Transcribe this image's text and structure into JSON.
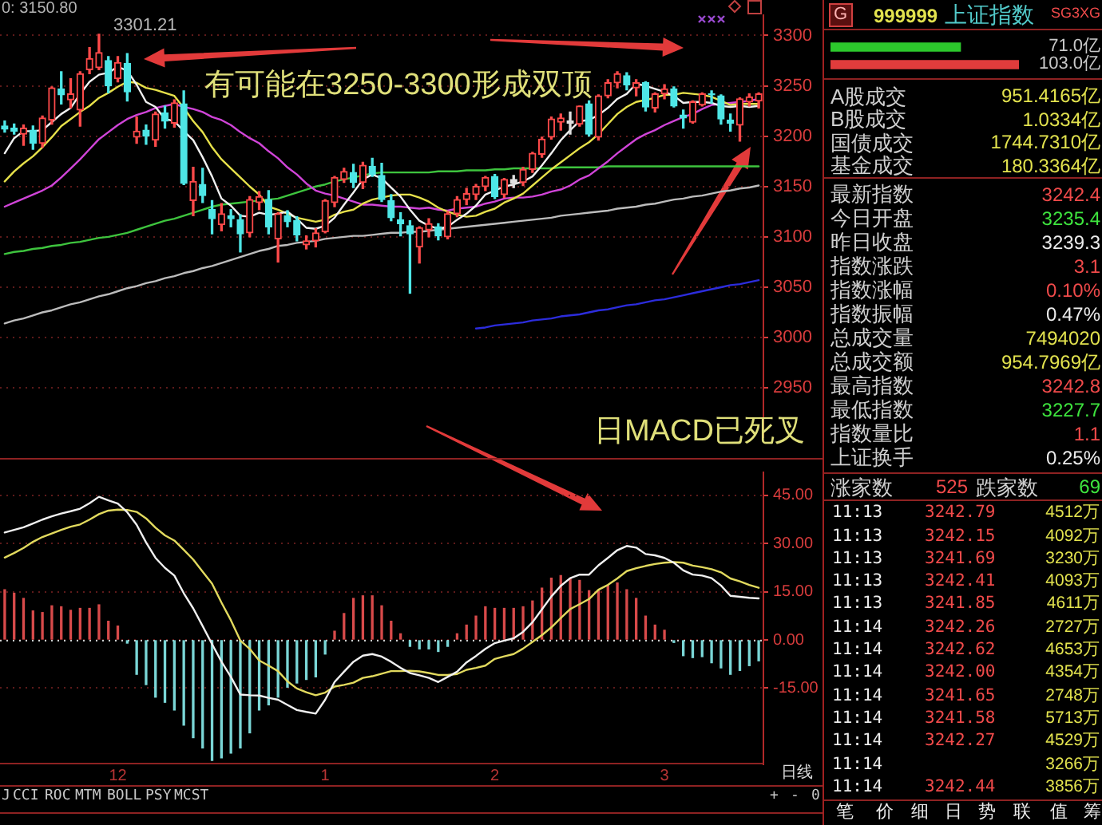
{
  "chart_data": [
    {
      "type": "candlestick",
      "categories": [
        null,
        null,
        null,
        null,
        null,
        null,
        null,
        null,
        null,
        null,
        null,
        null,
        "12",
        null,
        null,
        null,
        null,
        null,
        null,
        null,
        null,
        null,
        null,
        null,
        null,
        null,
        null,
        null,
        null,
        null,
        null,
        null,
        null,
        null,
        "1",
        null,
        null,
        null,
        null,
        null,
        null,
        null,
        null,
        null,
        null,
        null,
        null,
        null,
        null,
        null,
        null,
        null,
        "2",
        null,
        null,
        null,
        null,
        null,
        null,
        null,
        null,
        null,
        null,
        null,
        null,
        null,
        null,
        null,
        null,
        null,
        "3",
        null,
        null,
        null,
        null,
        null,
        null,
        null,
        null,
        null,
        null
      ],
      "ohlc": [
        [
          3210,
          3215,
          3204,
          3207
        ],
        [
          3208,
          3212,
          3202,
          3205
        ],
        [
          3202,
          3211,
          3191,
          3208
        ],
        [
          3206,
          3210,
          3187,
          3193
        ],
        [
          3193,
          3220,
          3189,
          3218
        ],
        [
          3216,
          3249,
          3212,
          3248
        ],
        [
          3247,
          3264,
          3232,
          3241
        ],
        [
          3236,
          3257,
          3228,
          3242
        ],
        [
          3226,
          3264,
          3210,
          3262
        ],
        [
          3266,
          3288,
          3262,
          3277
        ],
        [
          3268,
          3301.21,
          3266,
          3283
        ],
        [
          3275,
          3279,
          3243,
          3250
        ],
        [
          3257,
          3279,
          3254,
          3273
        ],
        [
          3272,
          3282,
          3235,
          3244
        ],
        [
          3199,
          3219,
          3193,
          3205
        ],
        [
          3206,
          3211,
          3192,
          3200
        ],
        [
          3196,
          3224,
          3190,
          3222
        ],
        [
          3223,
          3230,
          3208,
          3215
        ],
        [
          3213,
          3236,
          3209,
          3233
        ],
        [
          3232,
          3245,
          3152,
          3153
        ],
        [
          3136,
          3169,
          3121,
          3155
        ],
        [
          3152,
          3168,
          3134,
          3141
        ],
        [
          3127,
          3136,
          3103,
          3118
        ],
        [
          3112,
          3133,
          3106,
          3123
        ],
        [
          3121,
          3127,
          3110,
          3118
        ],
        [
          3117,
          3122,
          3085,
          3103
        ],
        [
          3104,
          3140,
          3100,
          3137
        ],
        [
          3134,
          3145,
          3127,
          3140
        ],
        [
          3137,
          3146,
          3103,
          3110
        ],
        [
          3098,
          3124,
          3075,
          3123
        ],
        [
          3121,
          3126,
          3110,
          3115
        ],
        [
          3116,
          3120,
          3096,
          3102
        ],
        [
          3092,
          3101,
          3088,
          3096
        ],
        [
          3096,
          3108,
          3090,
          3104
        ],
        [
          3105,
          3137,
          3104,
          3136
        ],
        [
          3134,
          3160,
          3130,
          3159
        ],
        [
          3157,
          3168,
          3154,
          3165
        ],
        [
          3164,
          3172,
          3149,
          3154
        ],
        [
          3154,
          3174,
          3148,
          3171
        ],
        [
          3170,
          3178,
          3160,
          3162
        ],
        [
          3161,
          3173,
          3135,
          3137
        ],
        [
          3136,
          3142,
          3116,
          3119
        ],
        [
          3117,
          3124,
          3101,
          3113
        ],
        [
          3111,
          3116,
          3044,
          3103
        ],
        [
          3090,
          3110,
          3074,
          3109
        ],
        [
          3107,
          3118,
          3100,
          3113
        ],
        [
          3110,
          3113,
          3097,
          3101
        ],
        [
          3100,
          3125,
          3098,
          3123
        ],
        [
          3123,
          3140,
          3120,
          3137
        ],
        [
          3137,
          3148,
          3132,
          3143
        ],
        [
          3142,
          3152,
          3137,
          3150
        ],
        [
          3150,
          3160,
          3146,
          3159
        ],
        [
          3160,
          3162,
          3138,
          3140
        ],
        [
          3142,
          3158,
          3139,
          3157
        ],
        [
          3157,
          3161,
          3149,
          3153
        ],
        [
          3154,
          3169,
          3151,
          3167
        ],
        [
          3167,
          3184,
          3164,
          3183
        ],
        [
          3182,
          3199,
          3179,
          3197
        ],
        [
          3199,
          3219,
          3197,
          3217
        ],
        [
          3214,
          3222,
          3206,
          3218
        ],
        [
          3215,
          3224,
          3202,
          3213
        ],
        [
          3212,
          3230,
          3210,
          3230
        ],
        [
          3232,
          3235,
          3200,
          3202
        ],
        [
          3199,
          3241,
          3196,
          3240
        ],
        [
          3240,
          3256,
          3238,
          3253
        ],
        [
          3253,
          3264,
          3248,
          3262
        ],
        [
          3260,
          3263,
          3246,
          3251
        ],
        [
          3248,
          3256,
          3240,
          3253
        ],
        [
          3253,
          3254,
          3225,
          3229
        ],
        [
          3228,
          3243,
          3224,
          3242
        ],
        [
          3242,
          3251,
          3237,
          3247
        ],
        [
          3247,
          3249,
          3229,
          3230
        ],
        [
          3221,
          3226,
          3208,
          3218
        ],
        [
          3214,
          3235,
          3213,
          3234
        ],
        [
          3231,
          3243,
          3230,
          3242
        ],
        [
          3242,
          3245,
          3233,
          3241
        ],
        [
          3240,
          3241,
          3212,
          3217
        ],
        [
          3216,
          3222,
          3205,
          3213
        ],
        [
          3211,
          3238,
          3195,
          3237
        ],
        [
          3234,
          3242,
          3230,
          3239
        ],
        [
          3235,
          3243,
          3228,
          3242
        ]
      ],
      "colors": [
        "#4ee6e6",
        "#4ee6e6",
        "#ff4a4a",
        "#4ee6e6",
        "#ff4a4a",
        "#ff4a4a",
        "#4ee6e6",
        "#ff4a4a",
        "#ff4a4a",
        "#ff4a4a",
        "#ff4a4a",
        "#4ee6e6",
        "#ff4a4a",
        "#4ee6e6",
        "#ff4a4a",
        "#4ee6e6",
        "#ff4a4a",
        "#4ee6e6",
        "#ff4a4a",
        "#4ee6e6",
        "#ff4a4a",
        "#4ee6e6",
        "#4ee6e6",
        "#ff4a4a",
        "#4ee6e6",
        "#4ee6e6",
        "#ff4a4a",
        "#ff4a4a",
        "#4ee6e6",
        "#ff4a4a",
        "#4ee6e6",
        "#4ee6e6",
        "#ff4a4a",
        "#ff4a4a",
        "#ff4a4a",
        "#ff4a4a",
        "#ff4a4a",
        "#4ee6e6",
        "#ff4a4a",
        "#4ee6e6",
        "#4ee6e6",
        "#4ee6e6",
        "#4ee6e6",
        "#4ee6e6",
        "#ff4a4a",
        "#ff4a4a",
        "#4ee6e6",
        "#ff4a4a",
        "#ff4a4a",
        "#ff4a4a",
        "#ff4a4a",
        "#ff4a4a",
        "#4ee6e6",
        "#ff4a4a",
        "#e0e0e0",
        "#ff4a4a",
        "#ff4a4a",
        "#ff4a4a",
        "#ff4a4a",
        "#ff4a4a",
        "#e0e0e0",
        "#ff4a4a",
        "#4ee6e6",
        "#ff4a4a",
        "#ff4a4a",
        "#ff4a4a",
        "#4ee6e6",
        "#ff4a4a",
        "#4ee6e6",
        "#ff4a4a",
        "#ff4a4a",
        "#4ee6e6",
        "#4ee6e6",
        "#ff4a4a",
        "#ff4a4a",
        "#4ee6e6",
        "#4ee6e6",
        "#4ee6e6",
        "#ff4a4a",
        "#ff4a4a",
        "#ff4a4a"
      ],
      "series": [
        {
          "type": "line",
          "color": "#f0f0f0",
          "values": [
            3183,
            3198,
            3205,
            3205,
            3206,
            3214,
            3222,
            3228,
            3242,
            3254,
            3261,
            3263,
            3269,
            3265,
            3251,
            3234,
            3229,
            3217,
            3215,
            3205,
            3196,
            3179,
            3160,
            3138,
            3131,
            3121,
            3120,
            3124,
            3122,
            3123,
            3125,
            3118,
            3109,
            3108,
            3111,
            3119,
            3132,
            3144,
            3157,
            3162,
            3158,
            3149,
            3140,
            3127,
            3116,
            3111,
            3108,
            3110,
            3117,
            3123,
            3131,
            3142,
            3146,
            3150,
            3152,
            3155,
            3160,
            3171,
            3183,
            3196,
            3206,
            3215,
            3216,
            3221,
            3228,
            3237,
            3242,
            3252,
            3250,
            3247,
            3244,
            3240,
            3233,
            3234,
            3234,
            3233,
            3230,
            3229,
            3230,
            3229,
            3230
          ]
        },
        {
          "type": "line",
          "color": "#e6e04a",
          "values": [
            3155,
            3165,
            3173,
            3180,
            3189,
            3199,
            3210,
            3217,
            3224,
            3230,
            3238,
            3243,
            3249,
            3254,
            3253,
            3248,
            3246,
            3243,
            3240,
            3228,
            3215,
            3204,
            3189,
            3177,
            3168,
            3159,
            3150,
            3142,
            3130,
            3127,
            3123,
            3119,
            3117,
            3115,
            3117,
            3122,
            3125,
            3127,
            3133,
            3137,
            3139,
            3141,
            3142,
            3142,
            3139,
            3135,
            3129,
            3125,
            3122,
            3120,
            3121,
            3125,
            3128,
            3134,
            3138,
            3143,
            3151,
            3159,
            3167,
            3174,
            3181,
            3188,
            3194,
            3202,
            3212,
            3222,
            3229,
            3234,
            3236,
            3238,
            3241,
            3241,
            3243,
            3242,
            3241,
            3239,
            3235,
            3231,
            3232,
            3232,
            3232
          ]
        },
        {
          "type": "line",
          "color": "#d044d8",
          "values": [
            3130,
            3134,
            3138,
            3142,
            3146,
            3151,
            3159,
            3168,
            3177,
            3187,
            3197,
            3204,
            3211,
            3217,
            3221,
            3224,
            3228,
            3230,
            3232,
            3229,
            3227,
            3224,
            3219,
            3216,
            3211,
            3204,
            3198,
            3193,
            3185,
            3178,
            3169,
            3162,
            3153,
            3146,
            3143,
            3141,
            3138,
            3135,
            3132,
            3132,
            3131,
            3130,
            3130,
            3129,
            3128,
            3129,
            3127,
            3126,
            3128,
            3129,
            3130,
            3133,
            3135,
            3138,
            3139,
            3139,
            3140,
            3142,
            3145,
            3147,
            3151,
            3157,
            3161,
            3168,
            3175,
            3183,
            3190,
            3197,
            3202,
            3206,
            3211,
            3215,
            3219,
            3222,
            3227,
            3231,
            3232,
            3233,
            3234,
            3235,
            3237
          ]
        },
        {
          "type": "line",
          "color": "#3ec43e",
          "values": [
            3083,
            3085,
            3086,
            3088,
            3089,
            3091,
            3092,
            3094,
            3095,
            3097,
            3099,
            3100,
            3102,
            3104,
            3107,
            3110,
            3113,
            3116,
            3118,
            3121,
            3124,
            3127,
            3130,
            3132,
            3133,
            3134,
            3135,
            3136,
            3137,
            3138,
            3141,
            3144,
            3147,
            3150,
            3152,
            3155,
            3157,
            3159,
            3161,
            3163,
            3164,
            3164,
            3164,
            3164,
            3164,
            3164,
            3165,
            3165,
            3165,
            3166,
            3166,
            3166,
            3167,
            3167,
            3168,
            3168,
            3168,
            3168,
            3168,
            3169,
            3169,
            3169,
            3169,
            3169,
            3170,
            3170,
            3170,
            3170,
            3170,
            3170,
            3170,
            3170,
            3170,
            3170,
            3170,
            3170,
            3170,
            3170,
            3170,
            3170,
            3170
          ]
        },
        {
          "type": "line",
          "color": "#bcbcbc",
          "values": [
            3014,
            3017,
            3019,
            3022,
            3025,
            3027,
            3030,
            3033,
            3035,
            3038,
            3041,
            3043,
            3046,
            3049,
            3051,
            3054,
            3056,
            3059,
            3061,
            3064,
            3066,
            3069,
            3071,
            3074,
            3077,
            3080,
            3083,
            3086,
            3088,
            3091,
            3092,
            3094,
            3095,
            3096,
            3098,
            3099,
            3100,
            3101,
            3101,
            3102,
            3103,
            3104,
            3104,
            3105,
            3105,
            3106,
            3107,
            3108,
            3109,
            3110,
            3111,
            3112,
            3113,
            3114,
            3115,
            3116,
            3117,
            3118,
            3119,
            3121,
            3122,
            3123,
            3124,
            3125,
            3126,
            3128,
            3129,
            3130,
            3132,
            3133,
            3135,
            3137,
            3138,
            3140,
            3141,
            3143,
            3145,
            3146,
            3148,
            3149,
            3151
          ]
        },
        {
          "type": "line",
          "color": "#2c2cdc",
          "values": [
            null,
            null,
            null,
            null,
            null,
            null,
            null,
            null,
            null,
            null,
            null,
            null,
            null,
            null,
            null,
            null,
            null,
            null,
            null,
            null,
            null,
            null,
            null,
            null,
            null,
            null,
            null,
            null,
            null,
            null,
            null,
            null,
            null,
            null,
            null,
            null,
            null,
            null,
            null,
            null,
            null,
            null,
            null,
            null,
            null,
            null,
            null,
            null,
            null,
            null,
            3009,
            3010,
            3012,
            3013,
            3014,
            3015,
            3017,
            3018,
            3019,
            3021,
            3022,
            3023,
            3025,
            3027,
            3028,
            3030,
            3032,
            3033,
            3035,
            3037,
            3038,
            3040,
            3042,
            3044,
            3046,
            3048,
            3050,
            3052,
            3053,
            3055,
            3057
          ]
        }
      ],
      "ylim": [
        2901,
        3320
      ],
      "yticks": [
        2950,
        3000,
        3050,
        3100,
        3150,
        3200,
        3250,
        3300
      ],
      "grid": "y",
      "tick_labels": "y",
      "annotations": [
        "0: 3150.80",
        "3301.21",
        "有可能在3250-3300形成双顶",
        "日MACD已死叉"
      ]
    },
    {
      "type": "bar",
      "categories": [
        null,
        null,
        null,
        null,
        null,
        null,
        null,
        null,
        null,
        null,
        null,
        null,
        "12",
        null,
        null,
        null,
        null,
        null,
        null,
        null,
        null,
        null,
        null,
        null,
        null,
        null,
        null,
        null,
        null,
        null,
        null,
        null,
        null,
        null,
        "1",
        null,
        null,
        null,
        null,
        null,
        null,
        null,
        null,
        null,
        null,
        null,
        null,
        null,
        null,
        null,
        null,
        null,
        "2",
        null,
        null,
        null,
        null,
        null,
        null,
        null,
        null,
        null,
        null,
        null,
        null,
        null,
        null,
        null,
        null,
        null,
        "3",
        null,
        null,
        null,
        null,
        null,
        null,
        null,
        null,
        null,
        null
      ],
      "series": [
        {
          "type": "bar",
          "values": [
            15.6,
            14.5,
            12.9,
            9.0,
            8.5,
            10.6,
            10.3,
            9.2,
            9.8,
            9.8,
            10.9,
            5.8,
            4.3,
            -1.0,
            -10.7,
            -13.9,
            -17.8,
            -19.4,
            -21.8,
            -26.5,
            -30.4,
            -33.6,
            -37.5,
            -36.7,
            -35.2,
            -33.6,
            -28.9,
            -21.8,
            -20.2,
            -17.8,
            -14.7,
            -13.4,
            -12.3,
            -11.5,
            -4.4,
            2.7,
            8.2,
            12.9,
            13.7,
            13.7,
            10.6,
            5.8,
            1.9,
            -2.0,
            -2.8,
            -2.8,
            -3.6,
            -2.0,
            1.9,
            4.6,
            7.4,
            10.3,
            9.8,
            9.8,
            9.8,
            10.3,
            12.1,
            16.1,
            19.2,
            20.0,
            19.2,
            18.5,
            15.3,
            15.3,
            16.9,
            17.7,
            15.6,
            12.9,
            7.4,
            4.6,
            3.0,
            -0.8,
            -4.9,
            -5.5,
            -5.2,
            -7.1,
            -8.7,
            -10.7,
            -9.5,
            -8.0,
            -6.5
          ],
          "colors": [
            "#d84a4a",
            "#d84a4a",
            "#d84a4a",
            "#d84a4a",
            "#d84a4a",
            "#d84a4a",
            "#d84a4a",
            "#d84a4a",
            "#d84a4a",
            "#d84a4a",
            "#d84a4a",
            "#d84a4a",
            "#d84a4a",
            "#7ad6d6",
            "#7ad6d6",
            "#7ad6d6",
            "#7ad6d6",
            "#7ad6d6",
            "#7ad6d6",
            "#7ad6d6",
            "#7ad6d6",
            "#7ad6d6",
            "#7ad6d6",
            "#7ad6d6",
            "#7ad6d6",
            "#7ad6d6",
            "#7ad6d6",
            "#7ad6d6",
            "#7ad6d6",
            "#7ad6d6",
            "#7ad6d6",
            "#7ad6d6",
            "#7ad6d6",
            "#7ad6d6",
            "#7ad6d6",
            "#d84a4a",
            "#d84a4a",
            "#d84a4a",
            "#d84a4a",
            "#d84a4a",
            "#d84a4a",
            "#d84a4a",
            "#d84a4a",
            "#7ad6d6",
            "#7ad6d6",
            "#7ad6d6",
            "#7ad6d6",
            "#7ad6d6",
            "#d84a4a",
            "#d84a4a",
            "#d84a4a",
            "#d84a4a",
            "#d84a4a",
            "#d84a4a",
            "#d84a4a",
            "#d84a4a",
            "#d84a4a",
            "#d84a4a",
            "#d84a4a",
            "#d84a4a",
            "#d84a4a",
            "#d84a4a",
            "#d84a4a",
            "#d84a4a",
            "#d84a4a",
            "#d84a4a",
            "#d84a4a",
            "#d84a4a",
            "#d84a4a",
            "#d84a4a",
            "#d84a4a",
            "#7ad6d6",
            "#7ad6d6",
            "#7ad6d6",
            "#7ad6d6",
            "#7ad6d6",
            "#7ad6d6",
            "#7ad6d6",
            "#7ad6d6",
            "#7ad6d6",
            "#7ad6d6"
          ]
        },
        {
          "type": "line",
          "color": "#f0f0f0",
          "values": [
            33.4,
            34.2,
            35.0,
            36.2,
            37.4,
            38.4,
            39.3,
            40.0,
            40.8,
            42.5,
            44.5,
            43.4,
            42.4,
            39.7,
            35.8,
            30.3,
            25.5,
            22.4,
            20.0,
            14.5,
            9.8,
            4.3,
            -1.3,
            -6.8,
            -11.5,
            -17.0,
            -17.2,
            -17.3,
            -18.0,
            -18.6,
            -20.2,
            -21.8,
            -22.4,
            -22.9,
            -18.6,
            -13.1,
            -9.9,
            -6.8,
            -4.9,
            -4.4,
            -5.2,
            -6.8,
            -8.7,
            -10.3,
            -11.0,
            -11.8,
            -13.1,
            -11.5,
            -9.9,
            -7.0,
            -5.0,
            -2.8,
            -1.0,
            -0.2,
            0.5,
            2.5,
            5.5,
            9.5,
            13.5,
            16.8,
            19.2,
            20.3,
            20.3,
            23.2,
            25.5,
            27.9,
            29.2,
            28.7,
            26.7,
            26.3,
            25.5,
            24.0,
            21.6,
            20.3,
            20.0,
            19.2,
            16.9,
            13.7,
            13.4,
            13.1,
            12.9
          ]
        },
        {
          "type": "line",
          "color": "#e2da5e",
          "values": [
            25.6,
            27.0,
            28.6,
            30.5,
            32.0,
            33.1,
            34.2,
            35.2,
            35.9,
            37.4,
            39.1,
            40.2,
            40.5,
            40.4,
            39.8,
            37.8,
            34.9,
            32.5,
            30.9,
            28.0,
            25.0,
            21.2,
            17.5,
            11.6,
            6.1,
            -0.2,
            -2.8,
            -6.4,
            -8.0,
            -9.7,
            -12.9,
            -15.1,
            -16.3,
            -17.2,
            -16.4,
            -14.5,
            -14.0,
            -13.3,
            -11.8,
            -11.3,
            -10.5,
            -9.7,
            -9.7,
            -9.6,
            -9.8,
            -10.3,
            -10.9,
            -10.9,
            -10.6,
            -9.3,
            -8.7,
            -8.0,
            -5.9,
            -5.1,
            -4.4,
            -2.7,
            -0.6,
            1.5,
            3.9,
            6.8,
            9.6,
            11.1,
            12.7,
            15.6,
            17.1,
            19.1,
            21.4,
            22.3,
            23.0,
            23.6,
            24.0,
            24.2,
            24.0,
            23.1,
            22.6,
            22.0,
            21.0,
            19.1,
            18.2,
            17.1,
            16.2
          ]
        }
      ],
      "ylim": [
        -38.7,
        52.1
      ],
      "yticks": [
        {
          "value": -15,
          "label": "-15.00"
        },
        {
          "value": 0,
          "label": "0.00"
        },
        {
          "value": 15,
          "label": "15.00"
        },
        {
          "value": 30,
          "label": "30.00"
        },
        {
          "value": 45,
          "label": "45.00"
        }
      ],
      "grid": "y",
      "ref_lines": [
        {
          "axis": "y",
          "value": 0,
          "color": "#d0d0d0",
          "line_style": "dotted"
        }
      ],
      "annotations": [
        "日线",
        "J",
        "CCI",
        "ROC",
        "MTM",
        "BOLL",
        "PSY",
        "MCST",
        "+",
        "-",
        "0"
      ]
    },
    {
      "type": "bar",
      "orientation": "horizontal",
      "categories": [
        null,
        null
      ],
      "values": [
        71.0,
        103.0
      ],
      "colors": [
        "#2cc82c",
        "#e03c3c"
      ],
      "value_labels": [
        "71.0亿",
        "103.0亿"
      ],
      "xlim": [
        0,
        103
      ],
      "tick_labels": false
    },
    {
      "type": "other",
      "title": "999999 上证指数",
      "annotations": [
        "G",
        "SG3XG",
        "A股成交",
        "951.4165亿",
        "B股成交",
        "1.0334亿",
        "国债成交",
        "1744.7310亿",
        "基金成交",
        "180.3364亿",
        "最新指数",
        "3242.4",
        "今日开盘",
        "3235.4",
        "昨日收盘",
        "3239.3",
        "指数涨跌",
        "3.1",
        "指数涨幅",
        "0.10%",
        "指数振幅",
        "0.47%",
        "总成交量",
        "7494020",
        "总成交额",
        "954.7969亿",
        "最高指数",
        "3242.8",
        "最低指数",
        "3227.7",
        "指数量比",
        "1.1",
        "上证换手",
        "0.25%",
        "涨家数",
        "525",
        "跌家数",
        "69",
        "11:13",
        "3242.79",
        "4512万",
        "11:13",
        "3242.15",
        "4092万",
        "11:13",
        "3241.69",
        "3230万",
        "11:13",
        "3242.41",
        "4093万",
        "11:13",
        "3241.85",
        "4611万",
        "11:14",
        "3242.26",
        "2727万",
        "11:14",
        "3242.62",
        "4653万",
        "11:14",
        "3242.00",
        "4354万",
        "11:14",
        "3241.65",
        "2748万",
        "11:14",
        "3241.58",
        "5713万",
        "11:14",
        "3242.27",
        "4529万",
        "11:14",
        null,
        "3266万",
        "11:14",
        "3242.44",
        "3856万",
        "笔",
        "价",
        "细",
        "日",
        "势",
        "联",
        "值",
        "筹"
      ]
    }
  ]
}
